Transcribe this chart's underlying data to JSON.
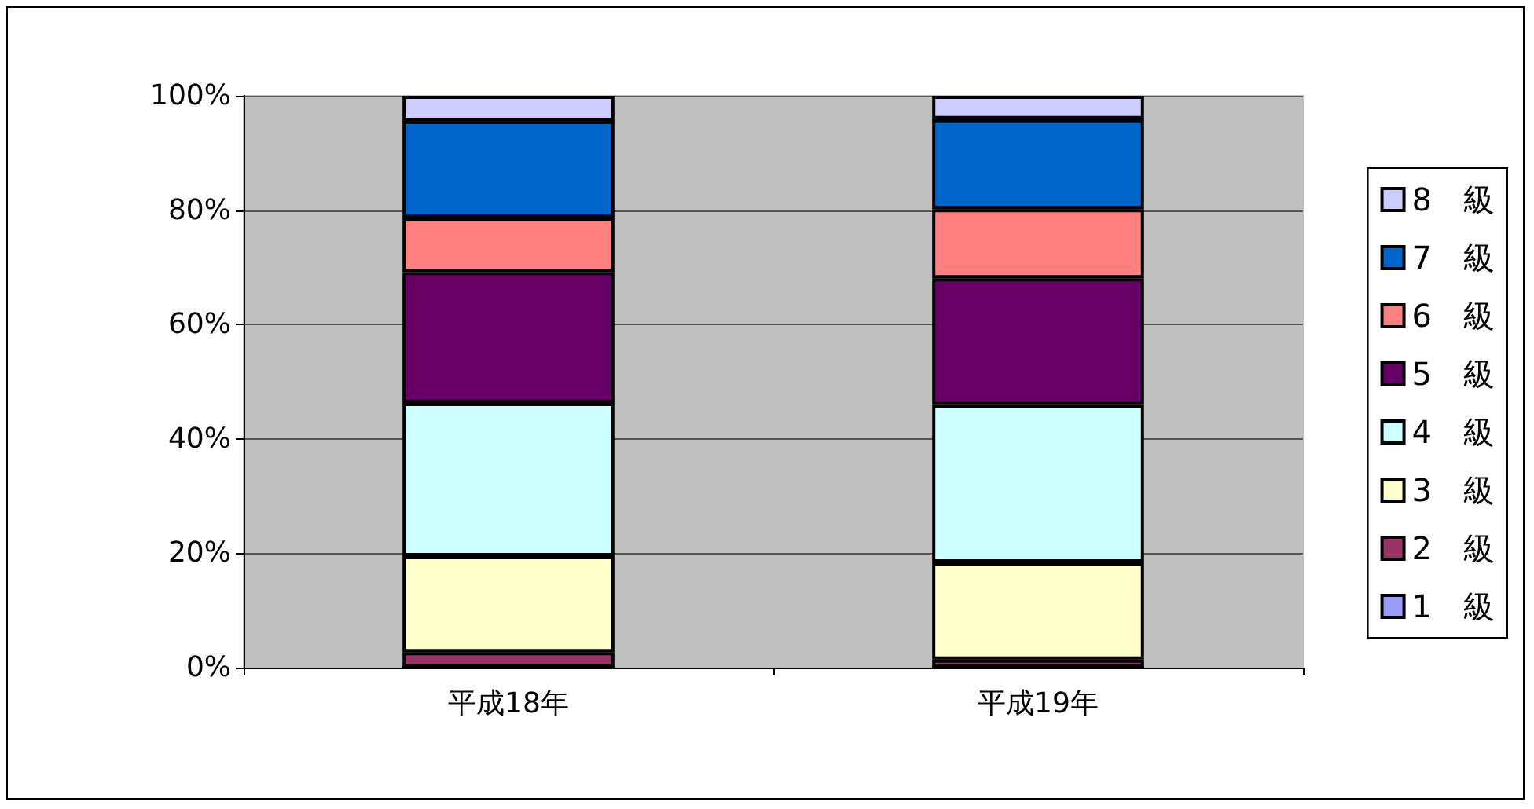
{
  "chart_data": {
    "type": "bar",
    "stacked": true,
    "categories": [
      "平成18年",
      "平成19年"
    ],
    "series": [
      {
        "name": "1　級",
        "color": "#9999ff",
        "values": [
          0,
          0
        ]
      },
      {
        "name": "2　級",
        "color": "#993366",
        "values": [
          2.7,
          1.4
        ]
      },
      {
        "name": "3　級",
        "color": "#ffffcc",
        "values": [
          16.8,
          17.0
        ]
      },
      {
        "name": "4　級",
        "color": "#ccffff",
        "values": [
          26.8,
          27.5
        ]
      },
      {
        "name": "5　級",
        "color": "#660066",
        "values": [
          22.9,
          22.2
        ]
      },
      {
        "name": "6　級",
        "color": "#ff8080",
        "values": [
          9.5,
          12.1
        ]
      },
      {
        "name": "7　級",
        "color": "#0066cc",
        "values": [
          16.9,
          15.7
        ]
      },
      {
        "name": "8　級",
        "color": "#ccccff",
        "values": [
          4.4,
          4.1
        ]
      }
    ],
    "ylim": [
      0,
      100
    ],
    "yticks": [
      {
        "value": 0,
        "label": "0%"
      },
      {
        "value": 20,
        "label": "20%"
      },
      {
        "value": 40,
        "label": "40%"
      },
      {
        "value": 60,
        "label": "60%"
      },
      {
        "value": 80,
        "label": "80%"
      },
      {
        "value": 100,
        "label": "100%"
      }
    ],
    "grid": "y",
    "legend": "right"
  }
}
